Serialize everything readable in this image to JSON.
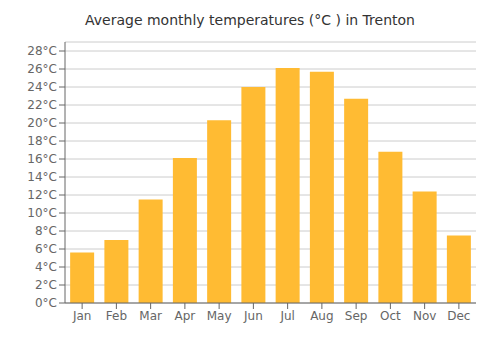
{
  "chart_data": {
    "type": "bar",
    "title": "Average monthly temperatures (°C ) in Trenton",
    "categories": [
      "Jan",
      "Feb",
      "Mar",
      "Apr",
      "May",
      "Jun",
      "Jul",
      "Aug",
      "Sep",
      "Oct",
      "Nov",
      "Dec"
    ],
    "values": [
      5.6,
      7.0,
      11.5,
      16.1,
      20.3,
      24.0,
      26.1,
      25.7,
      22.7,
      16.8,
      12.4,
      7.5
    ],
    "color": "#FFBB33",
    "ylim": [
      0,
      29
    ],
    "yticks": [
      {
        "value": 0,
        "label": "0°C"
      },
      {
        "value": 2,
        "label": "2°C"
      },
      {
        "value": 4,
        "label": "4°C"
      },
      {
        "value": 6,
        "label": "6°C"
      },
      {
        "value": 8,
        "label": "8°C"
      },
      {
        "value": 10,
        "label": "10°C"
      },
      {
        "value": 12,
        "label": "12°C"
      },
      {
        "value": 14,
        "label": "14°C"
      },
      {
        "value": 16,
        "label": "16°C"
      },
      {
        "value": 18,
        "label": "18°C"
      },
      {
        "value": 20,
        "label": "20°C"
      },
      {
        "value": 22,
        "label": "22°C"
      },
      {
        "value": 24,
        "label": "24°C"
      },
      {
        "value": 26,
        "label": "26°C"
      },
      {
        "value": 28,
        "label": "28°C"
      }
    ],
    "grid": true
  }
}
